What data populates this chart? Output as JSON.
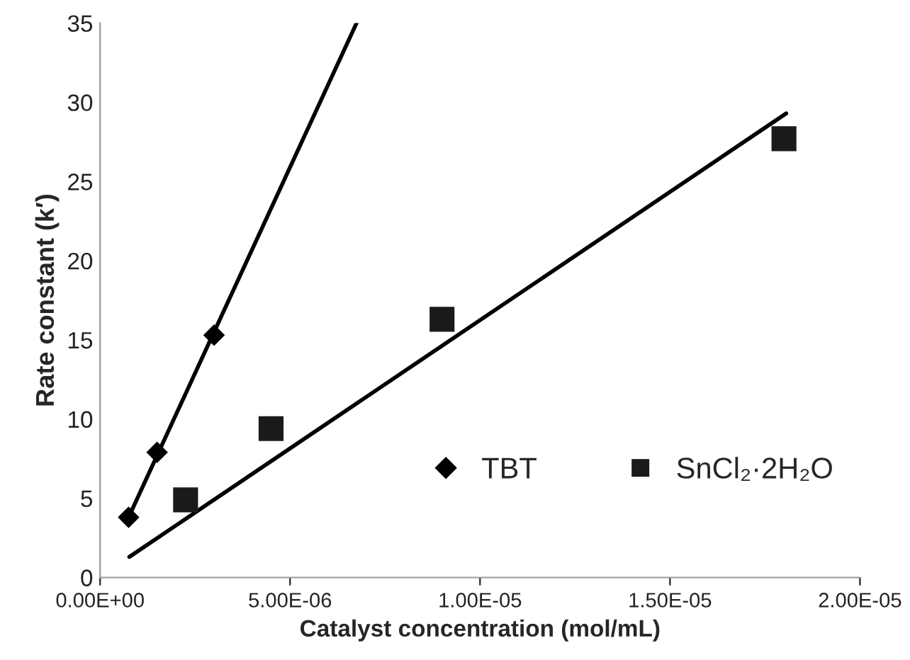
{
  "chart_data": {
    "type": "scatter",
    "xlabel": "Catalyst concentration (mol/mL)",
    "ylabel": "Rate constant (k′)",
    "series": [
      {
        "name": "TBT",
        "color": "#000000",
        "marker": "diamond",
        "x": [
          7.5e-07,
          1.5e-06,
          3e-06
        ],
        "values": [
          3.8,
          7.9,
          15.3
        ]
      },
      {
        "name": "SnCl₂·2H₂O",
        "color": "#1a1a1a",
        "marker": "square",
        "x": [
          2.25e-06,
          4.5e-06,
          9e-06,
          1.8e-05
        ],
        "values": [
          4.9,
          9.4,
          16.3,
          27.7
        ]
      },
      {
        "type": "line",
        "color": "#000000",
        "marker": "none",
        "x": [
          7.5e-07,
          6.75e-06
        ],
        "values": [
          3.8,
          35
        ]
      },
      {
        "type": "line",
        "color": "#000000",
        "marker": "none",
        "x": [
          7.7e-07,
          1.806e-05
        ],
        "values": [
          1.3,
          29.3
        ]
      }
    ],
    "xlim": [
      0,
      2e-05
    ],
    "xticks": [
      {
        "value": 0,
        "label": "0.00E+00"
      },
      {
        "value": 5e-06,
        "label": "5.00E-06"
      },
      {
        "value": 1e-05,
        "label": "1.00E-05"
      },
      {
        "value": 1.5e-05,
        "label": "1.50E-05"
      },
      {
        "value": 2e-05,
        "label": "2.00E-05"
      }
    ],
    "ylim": [
      0,
      35
    ],
    "yticks": [
      0,
      5,
      10,
      15,
      20,
      25,
      30,
      35
    ],
    "grid": false,
    "legend": "lower right"
  }
}
